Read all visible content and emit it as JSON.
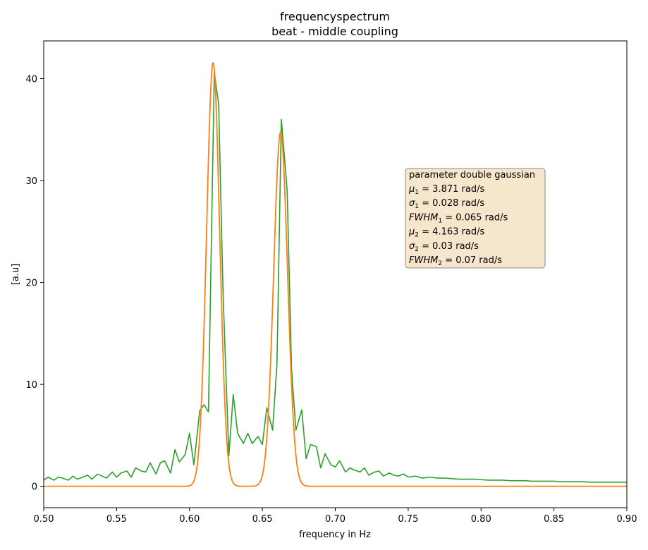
{
  "chart_data": {
    "type": "line",
    "title": "frequencyspectrum",
    "subtitle": "beat - middle coupling",
    "xlabel": "frequency in Hz",
    "ylabel": "[a.u]",
    "xlim": [
      0.5,
      0.9
    ],
    "ylim": [
      -2.1,
      43.7
    ],
    "xticks": [
      0.5,
      0.55,
      0.6,
      0.65,
      0.7,
      0.75,
      0.8,
      0.85,
      0.9
    ],
    "xtick_labels": [
      "0.50",
      "0.55",
      "0.60",
      "0.65",
      "0.70",
      "0.75",
      "0.80",
      "0.85",
      "0.90"
    ],
    "yticks": [
      0,
      10,
      20,
      30,
      40
    ],
    "ytick_labels": [
      "0",
      "10",
      "20",
      "30",
      "40"
    ],
    "grid": false,
    "series": [
      {
        "color": "#2ca02c",
        "x": [
          0.5,
          0.503,
          0.507,
          0.51,
          0.513,
          0.517,
          0.52,
          0.523,
          0.527,
          0.53,
          0.533,
          0.537,
          0.54,
          0.543,
          0.547,
          0.55,
          0.553,
          0.557,
          0.56,
          0.563,
          0.567,
          0.57,
          0.573,
          0.577,
          0.58,
          0.583,
          0.587,
          0.59,
          0.593,
          0.597,
          0.6,
          0.603,
          0.607,
          0.61,
          0.613,
          0.617,
          0.62,
          0.623,
          0.627,
          0.63,
          0.633,
          0.637,
          0.64,
          0.643,
          0.647,
          0.65,
          0.653,
          0.657,
          0.66,
          0.663,
          0.667,
          0.67,
          0.673,
          0.677,
          0.68,
          0.683,
          0.687,
          0.69,
          0.693,
          0.697,
          0.7,
          0.703,
          0.707,
          0.71,
          0.713,
          0.717,
          0.72,
          0.723,
          0.727,
          0.73,
          0.733,
          0.737,
          0.74,
          0.743,
          0.747,
          0.75,
          0.755,
          0.76,
          0.765,
          0.77,
          0.775,
          0.78,
          0.785,
          0.79,
          0.795,
          0.8,
          0.805,
          0.81,
          0.815,
          0.82,
          0.825,
          0.83,
          0.835,
          0.84,
          0.845,
          0.85,
          0.855,
          0.86,
          0.865,
          0.87,
          0.875,
          0.88,
          0.885,
          0.89,
          0.895,
          0.9
        ],
        "y": [
          0.6,
          0.9,
          0.6,
          0.9,
          0.8,
          0.6,
          1.0,
          0.7,
          0.9,
          1.1,
          0.7,
          1.2,
          1.0,
          0.8,
          1.4,
          0.9,
          1.3,
          1.5,
          0.9,
          1.8,
          1.5,
          1.4,
          2.3,
          1.2,
          2.3,
          2.5,
          1.3,
          3.6,
          2.4,
          3.1,
          5.2,
          2.1,
          7.4,
          8.0,
          7.3,
          40.6,
          37.5,
          19.0,
          3.0,
          9.0,
          5.2,
          4.2,
          5.2,
          4.2,
          4.9,
          4.1,
          7.7,
          5.5,
          12.0,
          36.0,
          29.0,
          11.5,
          5.5,
          7.5,
          2.7,
          4.1,
          3.9,
          1.8,
          3.2,
          2.1,
          1.9,
          2.5,
          1.4,
          1.8,
          1.6,
          1.4,
          1.8,
          1.1,
          1.4,
          1.5,
          1.0,
          1.3,
          1.1,
          1.0,
          1.2,
          0.9,
          1.0,
          0.8,
          0.9,
          0.8,
          0.8,
          0.75,
          0.7,
          0.7,
          0.7,
          0.65,
          0.6,
          0.6,
          0.6,
          0.55,
          0.55,
          0.55,
          0.5,
          0.5,
          0.5,
          0.5,
          0.45,
          0.45,
          0.45,
          0.45,
          0.4,
          0.4,
          0.4,
          0.4,
          0.4,
          0.4
        ]
      },
      {
        "color": "#ff7f0e",
        "fit": {
          "model": "double gaussian",
          "peaks": [
            {
              "center": 0.6162,
              "amplitude": 41.6,
              "sigma": 0.00445
            },
            {
              "center": 0.6625,
              "amplitude": 34.8,
              "sigma": 0.00475
            }
          ]
        }
      }
    ],
    "annotation": {
      "header": "parameter double gaussian",
      "lines": [
        {
          "sym": "μ",
          "sub": "1",
          "value": " = 3.871 rad/s"
        },
        {
          "sym": "σ",
          "sub": "1",
          "value": " = 0.028 rad/s"
        },
        {
          "sym": "FWHM",
          "sub": "1",
          "value": " = 0.065 rad/s"
        },
        {
          "sym": "μ",
          "sub": "2",
          "value": " = 4.163 rad/s"
        },
        {
          "sym": "σ",
          "sub": "2",
          "value": " = 0.03 rad/s"
        },
        {
          "sym": "FWHM",
          "sub": "2",
          "value": " = 0.07 rad/s"
        }
      ],
      "box_fill": "#f5e6cc",
      "box_edge": "#8a8a8a"
    }
  }
}
